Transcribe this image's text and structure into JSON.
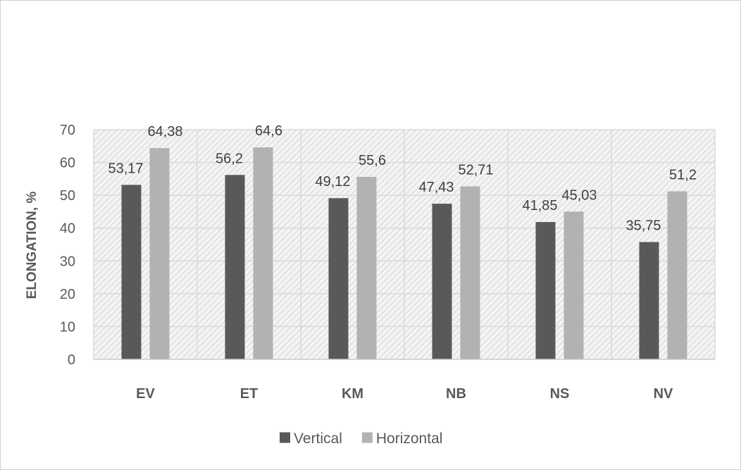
{
  "chart_data": {
    "type": "bar",
    "title": "",
    "xlabel": "",
    "ylabel": "ELONGATION, %",
    "ylim": [
      0,
      70
    ],
    "yticks": [
      0,
      10,
      20,
      30,
      40,
      50,
      60,
      70
    ],
    "categories": [
      "EV",
      "ET",
      "KM",
      "NB",
      "NS",
      "NV"
    ],
    "series": [
      {
        "name": "Vertical",
        "color": "#595959",
        "values": [
          53.17,
          56.2,
          49.12,
          47.43,
          41.85,
          35.75
        ],
        "labels": [
          "53,17",
          "56,2",
          "49,12",
          "47,43",
          "41,85",
          "35,75"
        ]
      },
      {
        "name": "Horizontal",
        "color": "#b2b2b2",
        "values": [
          64.38,
          64.6,
          55.6,
          52.71,
          45.03,
          51.2
        ],
        "labels": [
          "64,38",
          "64,6",
          "55,6",
          "52,71",
          "45,03",
          "51,2"
        ]
      }
    ],
    "grid": true,
    "legend": "bottom"
  }
}
